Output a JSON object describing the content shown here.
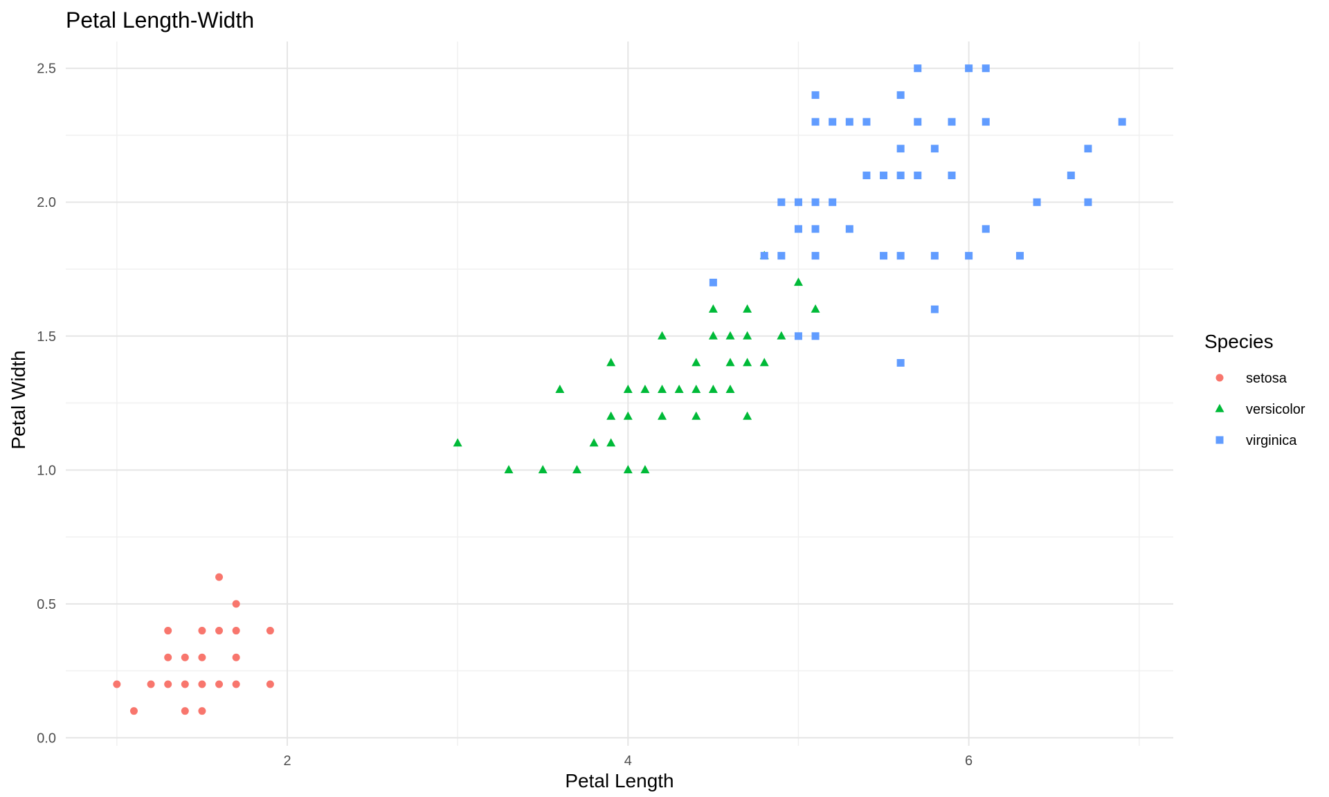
{
  "chart_data": {
    "type": "scatter",
    "title": "Petal Length-Width",
    "xlabel": "Petal Length",
    "ylabel": "Petal Width",
    "xlim": [
      0.7,
      7.2
    ],
    "ylim": [
      -0.03,
      2.6
    ],
    "x_ticks": [
      2,
      4,
      6
    ],
    "x_tick_labels": [
      "2",
      "4",
      "6"
    ],
    "y_ticks": [
      0.0,
      0.5,
      1.0,
      1.5,
      2.0,
      2.5
    ],
    "y_tick_labels": [
      "0.0",
      "0.5",
      "1.0",
      "1.5",
      "2.0",
      "2.5"
    ],
    "grid": true,
    "legend": {
      "title": "Species",
      "position": "right"
    },
    "series": [
      {
        "name": "setosa",
        "shape": "circle",
        "color": "#F8766D",
        "points": [
          [
            1.0,
            0.2
          ],
          [
            1.1,
            0.1
          ],
          [
            1.2,
            0.2
          ],
          [
            1.3,
            0.2
          ],
          [
            1.3,
            0.3
          ],
          [
            1.3,
            0.4
          ],
          [
            1.4,
            0.1
          ],
          [
            1.4,
            0.2
          ],
          [
            1.4,
            0.3
          ],
          [
            1.5,
            0.1
          ],
          [
            1.5,
            0.2
          ],
          [
            1.5,
            0.3
          ],
          [
            1.5,
            0.4
          ],
          [
            1.6,
            0.2
          ],
          [
            1.6,
            0.4
          ],
          [
            1.6,
            0.6
          ],
          [
            1.7,
            0.2
          ],
          [
            1.7,
            0.3
          ],
          [
            1.7,
            0.4
          ],
          [
            1.7,
            0.5
          ],
          [
            1.9,
            0.2
          ],
          [
            1.9,
            0.4
          ]
        ]
      },
      {
        "name": "versicolor",
        "shape": "triangle",
        "color": "#00BA38",
        "points": [
          [
            3.0,
            1.1
          ],
          [
            3.3,
            1.0
          ],
          [
            3.5,
            1.0
          ],
          [
            3.6,
            1.3
          ],
          [
            3.7,
            1.0
          ],
          [
            3.8,
            1.1
          ],
          [
            3.9,
            1.1
          ],
          [
            3.9,
            1.2
          ],
          [
            3.9,
            1.4
          ],
          [
            4.0,
            1.0
          ],
          [
            4.0,
            1.2
          ],
          [
            4.0,
            1.3
          ],
          [
            4.1,
            1.0
          ],
          [
            4.1,
            1.3
          ],
          [
            4.2,
            1.2
          ],
          [
            4.2,
            1.3
          ],
          [
            4.2,
            1.5
          ],
          [
            4.3,
            1.3
          ],
          [
            4.4,
            1.2
          ],
          [
            4.4,
            1.3
          ],
          [
            4.4,
            1.4
          ],
          [
            4.5,
            1.3
          ],
          [
            4.5,
            1.5
          ],
          [
            4.5,
            1.6
          ],
          [
            4.6,
            1.3
          ],
          [
            4.6,
            1.4
          ],
          [
            4.6,
            1.5
          ],
          [
            4.7,
            1.2
          ],
          [
            4.7,
            1.4
          ],
          [
            4.7,
            1.5
          ],
          [
            4.7,
            1.6
          ],
          [
            4.8,
            1.4
          ],
          [
            4.8,
            1.8
          ],
          [
            4.9,
            1.5
          ],
          [
            5.0,
            1.7
          ],
          [
            5.1,
            1.6
          ]
        ]
      },
      {
        "name": "virginica",
        "shape": "square",
        "color": "#619CFF",
        "points": [
          [
            4.5,
            1.7
          ],
          [
            4.8,
            1.8
          ],
          [
            4.9,
            1.8
          ],
          [
            4.9,
            2.0
          ],
          [
            5.0,
            1.5
          ],
          [
            5.0,
            1.9
          ],
          [
            5.0,
            2.0
          ],
          [
            5.1,
            1.5
          ],
          [
            5.1,
            1.8
          ],
          [
            5.1,
            1.9
          ],
          [
            5.1,
            2.0
          ],
          [
            5.1,
            2.3
          ],
          [
            5.1,
            2.4
          ],
          [
            5.2,
            2.0
          ],
          [
            5.2,
            2.3
          ],
          [
            5.3,
            1.9
          ],
          [
            5.3,
            2.3
          ],
          [
            5.4,
            2.1
          ],
          [
            5.4,
            2.3
          ],
          [
            5.5,
            1.8
          ],
          [
            5.5,
            2.1
          ],
          [
            5.6,
            1.4
          ],
          [
            5.6,
            1.8
          ],
          [
            5.6,
            2.1
          ],
          [
            5.6,
            2.2
          ],
          [
            5.6,
            2.4
          ],
          [
            5.7,
            2.1
          ],
          [
            5.7,
            2.3
          ],
          [
            5.7,
            2.5
          ],
          [
            5.8,
            1.6
          ],
          [
            5.8,
            1.8
          ],
          [
            5.8,
            2.2
          ],
          [
            5.9,
            2.1
          ],
          [
            5.9,
            2.3
          ],
          [
            6.0,
            1.8
          ],
          [
            6.0,
            2.5
          ],
          [
            6.1,
            1.9
          ],
          [
            6.1,
            2.3
          ],
          [
            6.1,
            2.5
          ],
          [
            6.3,
            1.8
          ],
          [
            6.4,
            2.0
          ],
          [
            6.6,
            2.1
          ],
          [
            6.7,
            2.0
          ],
          [
            6.7,
            2.2
          ],
          [
            6.9,
            2.3
          ]
        ]
      }
    ]
  }
}
